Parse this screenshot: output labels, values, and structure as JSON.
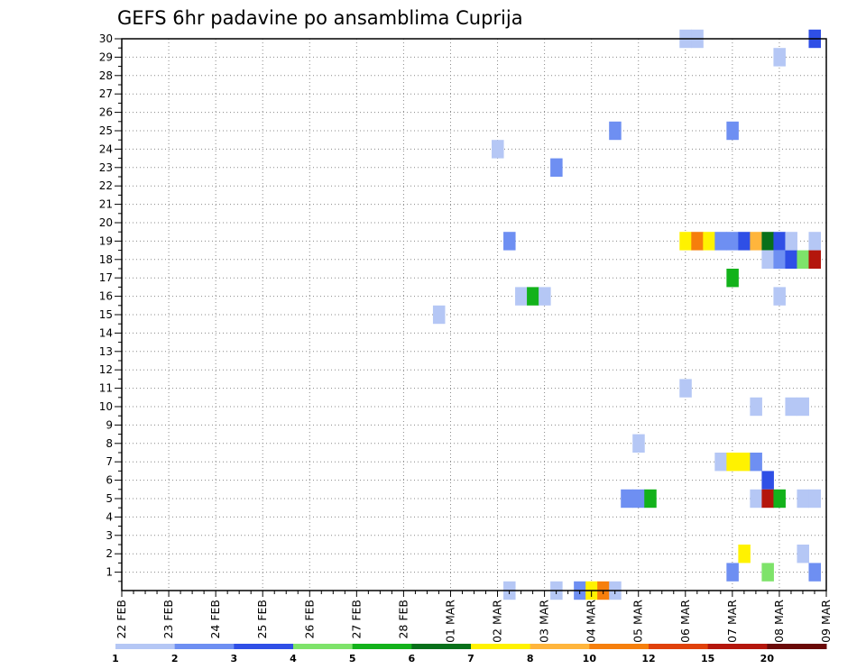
{
  "chart_data": {
    "type": "heatmap",
    "title": "GEFS 6hr padavine po ansamblima Cuprija",
    "xlabel": "",
    "ylabel": "",
    "x_tick_labels": [
      "22 FEB",
      "23 FEB",
      "24 FEB",
      "25 FEB",
      "26 FEB",
      "27 FEB",
      "28 FEB",
      "01 MAR",
      "02 MAR",
      "03 MAR",
      "04 MAR",
      "05 MAR",
      "06 MAR",
      "07 MAR",
      "08 MAR",
      "09 MAR"
    ],
    "y_tick_labels": [
      "1",
      "2",
      "3",
      "4",
      "5",
      "6",
      "7",
      "8",
      "9",
      "10",
      "11",
      "12",
      "13",
      "14",
      "15",
      "16",
      "17",
      "18",
      "19",
      "20",
      "21",
      "22",
      "23",
      "24",
      "25",
      "26",
      "27",
      "28",
      "29",
      "30"
    ],
    "x_unit": "day index from 22 FEB (0 = 22 FEB, 15 = 09 MAR), 6-hour steps",
    "y_range": [
      0,
      30
    ],
    "x_range": [
      0,
      15
    ],
    "grid": true,
    "legend_placement": "bottom",
    "legend": {
      "thresholds": [
        "1",
        "2",
        "3",
        "4",
        "5",
        "6",
        "7",
        "8",
        "10",
        "12",
        "15",
        "20"
      ],
      "colors": [
        "#b5c7f5",
        "#6e8ff2",
        "#2f4fe6",
        "#7ee36a",
        "#13b21b",
        "#08701a",
        "#fff200",
        "#ffb53c",
        "#f67f0c",
        "#e0410b",
        "#b4160c",
        "#6a0a08"
      ]
    },
    "cells": [
      {
        "day": 12.0,
        "member": 30,
        "cat": 0
      },
      {
        "day": 12.25,
        "member": 30,
        "cat": 0
      },
      {
        "day": 14.75,
        "member": 30,
        "cat": 2
      },
      {
        "day": 14.0,
        "member": 29,
        "cat": 0
      },
      {
        "day": 10.5,
        "member": 25,
        "cat": 1
      },
      {
        "day": 13.0,
        "member": 25,
        "cat": 1
      },
      {
        "day": 8.0,
        "member": 24,
        "cat": 0
      },
      {
        "day": 9.25,
        "member": 23,
        "cat": 1
      },
      {
        "day": 8.25,
        "member": 19,
        "cat": 1
      },
      {
        "day": 12.0,
        "member": 19,
        "cat": 6
      },
      {
        "day": 12.25,
        "member": 19,
        "cat": 8
      },
      {
        "day": 12.5,
        "member": 19,
        "cat": 6
      },
      {
        "day": 12.75,
        "member": 19,
        "cat": 1
      },
      {
        "day": 13.0,
        "member": 19,
        "cat": 1
      },
      {
        "day": 13.25,
        "member": 19,
        "cat": 2
      },
      {
        "day": 13.5,
        "member": 19,
        "cat": 7
      },
      {
        "day": 13.75,
        "member": 19,
        "cat": 5
      },
      {
        "day": 14.0,
        "member": 19,
        "cat": 2
      },
      {
        "day": 14.25,
        "member": 19,
        "cat": 0
      },
      {
        "day": 14.75,
        "member": 19,
        "cat": 0
      },
      {
        "day": 13.75,
        "member": 18,
        "cat": 0
      },
      {
        "day": 14.0,
        "member": 18,
        "cat": 1
      },
      {
        "day": 14.25,
        "member": 18,
        "cat": 2
      },
      {
        "day": 14.5,
        "member": 18,
        "cat": 3
      },
      {
        "day": 14.75,
        "member": 18,
        "cat": 10
      },
      {
        "day": 13.0,
        "member": 17,
        "cat": 4
      },
      {
        "day": 14.0,
        "member": 16,
        "cat": 0
      },
      {
        "day": 8.5,
        "member": 16,
        "cat": 0
      },
      {
        "day": 8.75,
        "member": 16,
        "cat": 4
      },
      {
        "day": 9.0,
        "member": 16,
        "cat": 0
      },
      {
        "day": 6.75,
        "member": 15,
        "cat": 0
      },
      {
        "day": 12.0,
        "member": 11,
        "cat": 0
      },
      {
        "day": 13.5,
        "member": 10,
        "cat": 0
      },
      {
        "day": 14.25,
        "member": 10,
        "cat": 0
      },
      {
        "day": 14.5,
        "member": 10,
        "cat": 0
      },
      {
        "day": 11.0,
        "member": 8,
        "cat": 0
      },
      {
        "day": 12.75,
        "member": 7,
        "cat": 0
      },
      {
        "day": 13.0,
        "member": 7,
        "cat": 6
      },
      {
        "day": 13.25,
        "member": 7,
        "cat": 6
      },
      {
        "day": 13.5,
        "member": 7,
        "cat": 1
      },
      {
        "day": 13.75,
        "member": 6,
        "cat": 2
      },
      {
        "day": 10.75,
        "member": 5,
        "cat": 1
      },
      {
        "day": 11.0,
        "member": 5,
        "cat": 1
      },
      {
        "day": 11.25,
        "member": 5,
        "cat": 4
      },
      {
        "day": 13.5,
        "member": 5,
        "cat": 0
      },
      {
        "day": 13.75,
        "member": 5,
        "cat": 10
      },
      {
        "day": 14.0,
        "member": 5,
        "cat": 4
      },
      {
        "day": 14.5,
        "member": 5,
        "cat": 0
      },
      {
        "day": 14.75,
        "member": 5,
        "cat": 0
      },
      {
        "day": 13.25,
        "member": 2,
        "cat": 6
      },
      {
        "day": 14.5,
        "member": 2,
        "cat": 0
      },
      {
        "day": 13.0,
        "member": 1,
        "cat": 1
      },
      {
        "day": 13.75,
        "member": 1,
        "cat": 3
      },
      {
        "day": 14.75,
        "member": 1,
        "cat": 1
      },
      {
        "day": 8.25,
        "member": 0,
        "cat": 0
      },
      {
        "day": 9.25,
        "member": 0,
        "cat": 0
      },
      {
        "day": 9.75,
        "member": 0,
        "cat": 1
      },
      {
        "day": 10.0,
        "member": 0,
        "cat": 6
      },
      {
        "day": 10.25,
        "member": 0,
        "cat": 8
      },
      {
        "day": 10.5,
        "member": 0,
        "cat": 0
      }
    ]
  }
}
